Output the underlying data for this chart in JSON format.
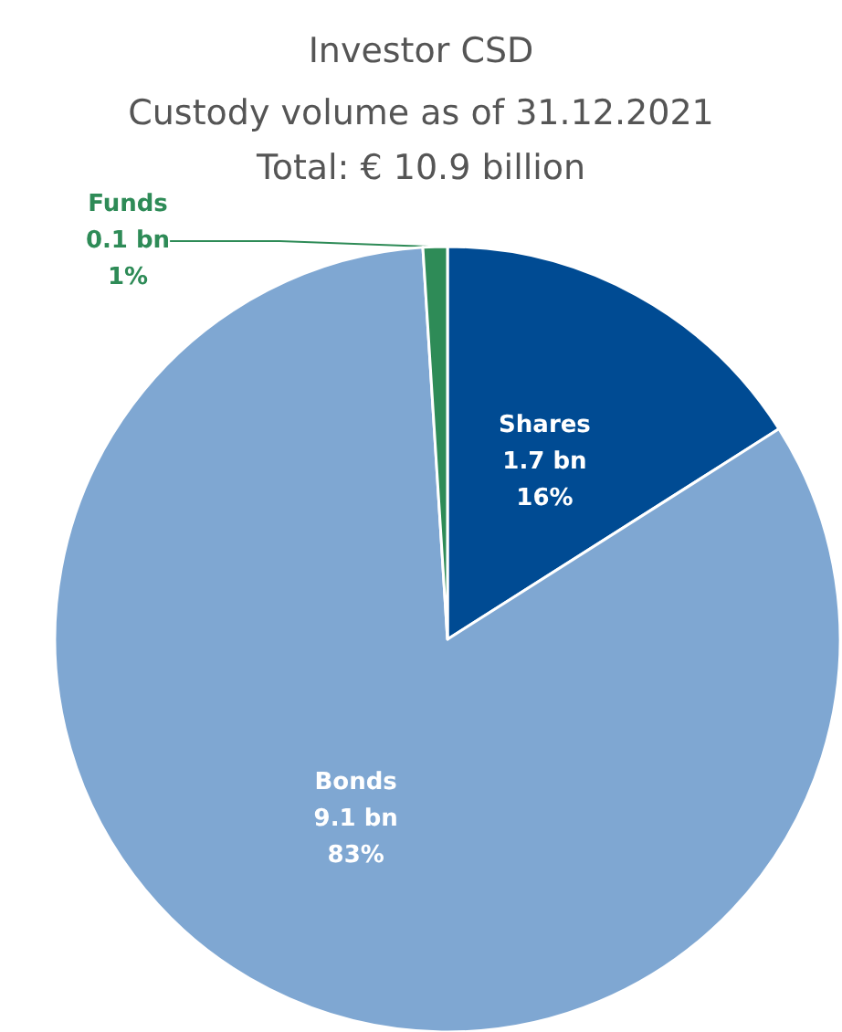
{
  "chart_data": {
    "type": "pie",
    "title": "Investor CSD",
    "subtitle": "Custody volume as of 31.12.2021\nTotal: € 10.9 billion",
    "categories": [
      "Shares",
      "Bonds",
      "Funds"
    ],
    "values": [
      16,
      83,
      1
    ],
    "value_labels": [
      "1.7 bn\n16%",
      "9.1 bn\n83%",
      "0.1 bn\n1%"
    ],
    "colors": [
      "#004b93",
      "#7fa7d2",
      "#2e8b57"
    ],
    "legend": false
  }
}
